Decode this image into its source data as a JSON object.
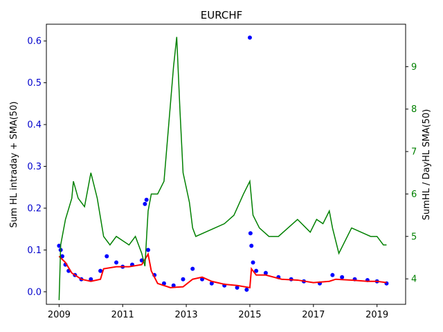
{
  "chart_data": {
    "type": "line",
    "title": "EURCHF",
    "ylabel_left": "Sum HL intraday + SMA(50)",
    "ylabel_right": "SumHL / DayHL SMA(50)",
    "xlabel": "",
    "x_ticks": [
      "2009",
      "2011",
      "2013",
      "2015",
      "2017",
      "2019"
    ],
    "x_range": [
      2008.6,
      2019.9
    ],
    "y_left_ticks": [
      "0.0",
      "0.1",
      "0.2",
      "0.3",
      "0.4",
      "0.5",
      "0.6"
    ],
    "y_left_range": [
      -0.03,
      0.64
    ],
    "y_right_ticks": [
      "4",
      "5",
      "6",
      "7",
      "8",
      "9"
    ],
    "y_right_range": [
      3.4,
      10.0
    ],
    "grid": false,
    "colors": {
      "scatter": "#0000ff",
      "sma_left": "#ff0000",
      "ratio": "#008000",
      "left_axis": "#0000cc",
      "right_axis": "#008000"
    },
    "series": [
      {
        "name": "Sum HL intraday",
        "axis": "left",
        "style": "scatter",
        "x": [
          2009.0,
          2009.05,
          2009.1,
          2009.2,
          2009.3,
          2009.5,
          2009.7,
          2010.0,
          2010.3,
          2010.5,
          2010.8,
          2011.0,
          2011.3,
          2011.6,
          2011.7,
          2011.75,
          2011.8,
          2012.0,
          2012.3,
          2012.6,
          2012.9,
          2013.2,
          2013.5,
          2013.8,
          2014.2,
          2014.6,
          2014.9,
          2015.0,
          2015.02,
          2015.05,
          2015.1,
          2015.2,
          2015.5,
          2015.9,
          2016.3,
          2016.7,
          2017.2,
          2017.6,
          2017.9,
          2018.3,
          2018.7,
          2019.0,
          2019.3
        ],
        "y": [
          0.11,
          0.1,
          0.085,
          0.065,
          0.05,
          0.04,
          0.03,
          0.03,
          0.05,
          0.085,
          0.07,
          0.06,
          0.065,
          0.075,
          0.21,
          0.22,
          0.1,
          0.04,
          0.02,
          0.015,
          0.03,
          0.055,
          0.03,
          0.02,
          0.015,
          0.01,
          0.005,
          0.608,
          0.14,
          0.11,
          0.07,
          0.05,
          0.045,
          0.035,
          0.03,
          0.025,
          0.02,
          0.04,
          0.035,
          0.03,
          0.028,
          0.025,
          0.02
        ]
      },
      {
        "name": "SMA(50)",
        "axis": "left",
        "style": "line",
        "x": [
          2009.0,
          2009.2,
          2009.4,
          2009.7,
          2010.0,
          2010.3,
          2010.4,
          2010.8,
          2011.2,
          2011.6,
          2011.8,
          2011.9,
          2012.1,
          2012.5,
          2012.9,
          2013.2,
          2013.5,
          2013.8,
          2014.2,
          2014.6,
          2015.0,
          2015.05,
          2015.2,
          2015.5,
          2016.0,
          2016.5,
          2017.0,
          2017.5,
          2017.7,
          2018.2,
          2018.7,
          2019.0,
          2019.3
        ],
        "y": [
          0.085,
          0.07,
          0.045,
          0.03,
          0.025,
          0.03,
          0.055,
          0.06,
          0.06,
          0.065,
          0.09,
          0.05,
          0.02,
          0.01,
          0.012,
          0.03,
          0.035,
          0.025,
          0.018,
          0.015,
          0.01,
          0.055,
          0.04,
          0.04,
          0.03,
          0.028,
          0.022,
          0.025,
          0.03,
          0.028,
          0.025,
          0.025,
          0.022
        ]
      },
      {
        "name": "SumHL / DayHL SMA(50)",
        "axis": "right",
        "style": "line",
        "x": [
          2009.0,
          2009.05,
          2009.2,
          2009.4,
          2009.45,
          2009.6,
          2009.8,
          2010.0,
          2010.2,
          2010.4,
          2010.6,
          2010.8,
          2011.0,
          2011.2,
          2011.4,
          2011.6,
          2011.7,
          2011.8,
          2011.9,
          2012.1,
          2012.3,
          2012.6,
          2012.7,
          2012.8,
          2012.9,
          2013.1,
          2013.2,
          2013.3,
          2013.6,
          2013.9,
          2014.2,
          2014.5,
          2014.8,
          2015.0,
          2015.1,
          2015.3,
          2015.6,
          2015.9,
          2016.2,
          2016.5,
          2016.9,
          2017.1,
          2017.3,
          2017.5,
          2017.6,
          2017.8,
          2018.2,
          2018.5,
          2018.8,
          2019.0,
          2019.2,
          2019.3
        ],
        "y": [
          3.5,
          4.8,
          5.4,
          5.9,
          6.3,
          5.9,
          5.7,
          6.5,
          5.9,
          5.0,
          4.8,
          5.0,
          4.9,
          4.8,
          5.0,
          4.6,
          4.3,
          5.6,
          6.0,
          6.0,
          6.3,
          9.0,
          9.7,
          8.0,
          6.5,
          5.8,
          5.2,
          5.0,
          5.1,
          5.2,
          5.3,
          5.5,
          6.0,
          6.3,
          5.5,
          5.2,
          5.0,
          5.0,
          5.2,
          5.4,
          5.1,
          5.4,
          5.3,
          5.6,
          5.2,
          4.6,
          5.2,
          5.1,
          5.0,
          5.0,
          4.8,
          4.8
        ]
      }
    ]
  }
}
